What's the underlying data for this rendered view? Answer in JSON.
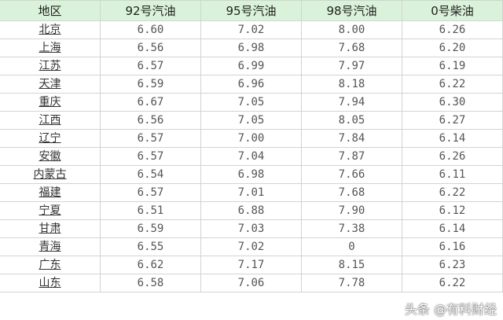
{
  "headers": [
    "地区",
    "92号汽油",
    "95号汽油",
    "98号汽油",
    "0号柴油"
  ],
  "rows": [
    [
      "北京",
      "6.60",
      "7.02",
      "8.00",
      "6.26"
    ],
    [
      "上海",
      "6.56",
      "6.98",
      "7.68",
      "6.20"
    ],
    [
      "江苏",
      "6.57",
      "6.99",
      "7.97",
      "6.19"
    ],
    [
      "天津",
      "6.59",
      "6.96",
      "8.18",
      "6.22"
    ],
    [
      "重庆",
      "6.67",
      "7.05",
      "7.94",
      "6.30"
    ],
    [
      "江西",
      "6.56",
      "7.05",
      "8.05",
      "6.27"
    ],
    [
      "辽宁",
      "6.57",
      "7.00",
      "7.84",
      "6.14"
    ],
    [
      "安徽",
      "6.57",
      "7.04",
      "7.87",
      "6.26"
    ],
    [
      "内蒙古",
      "6.54",
      "6.98",
      "7.66",
      "6.11"
    ],
    [
      "福建",
      "6.57",
      "7.01",
      "7.68",
      "6.22"
    ],
    [
      "宁夏",
      "6.51",
      "6.88",
      "7.90",
      "6.12"
    ],
    [
      "甘肃",
      "6.59",
      "7.03",
      "7.38",
      "6.14"
    ],
    [
      "青海",
      "6.55",
      "7.02",
      "0",
      "6.16"
    ],
    [
      "广东",
      "6.62",
      "7.17",
      "8.15",
      "6.23"
    ],
    [
      "山东",
      "6.58",
      "7.06",
      "7.78",
      "6.22"
    ]
  ],
  "watermark": "头条 @有料财经"
}
